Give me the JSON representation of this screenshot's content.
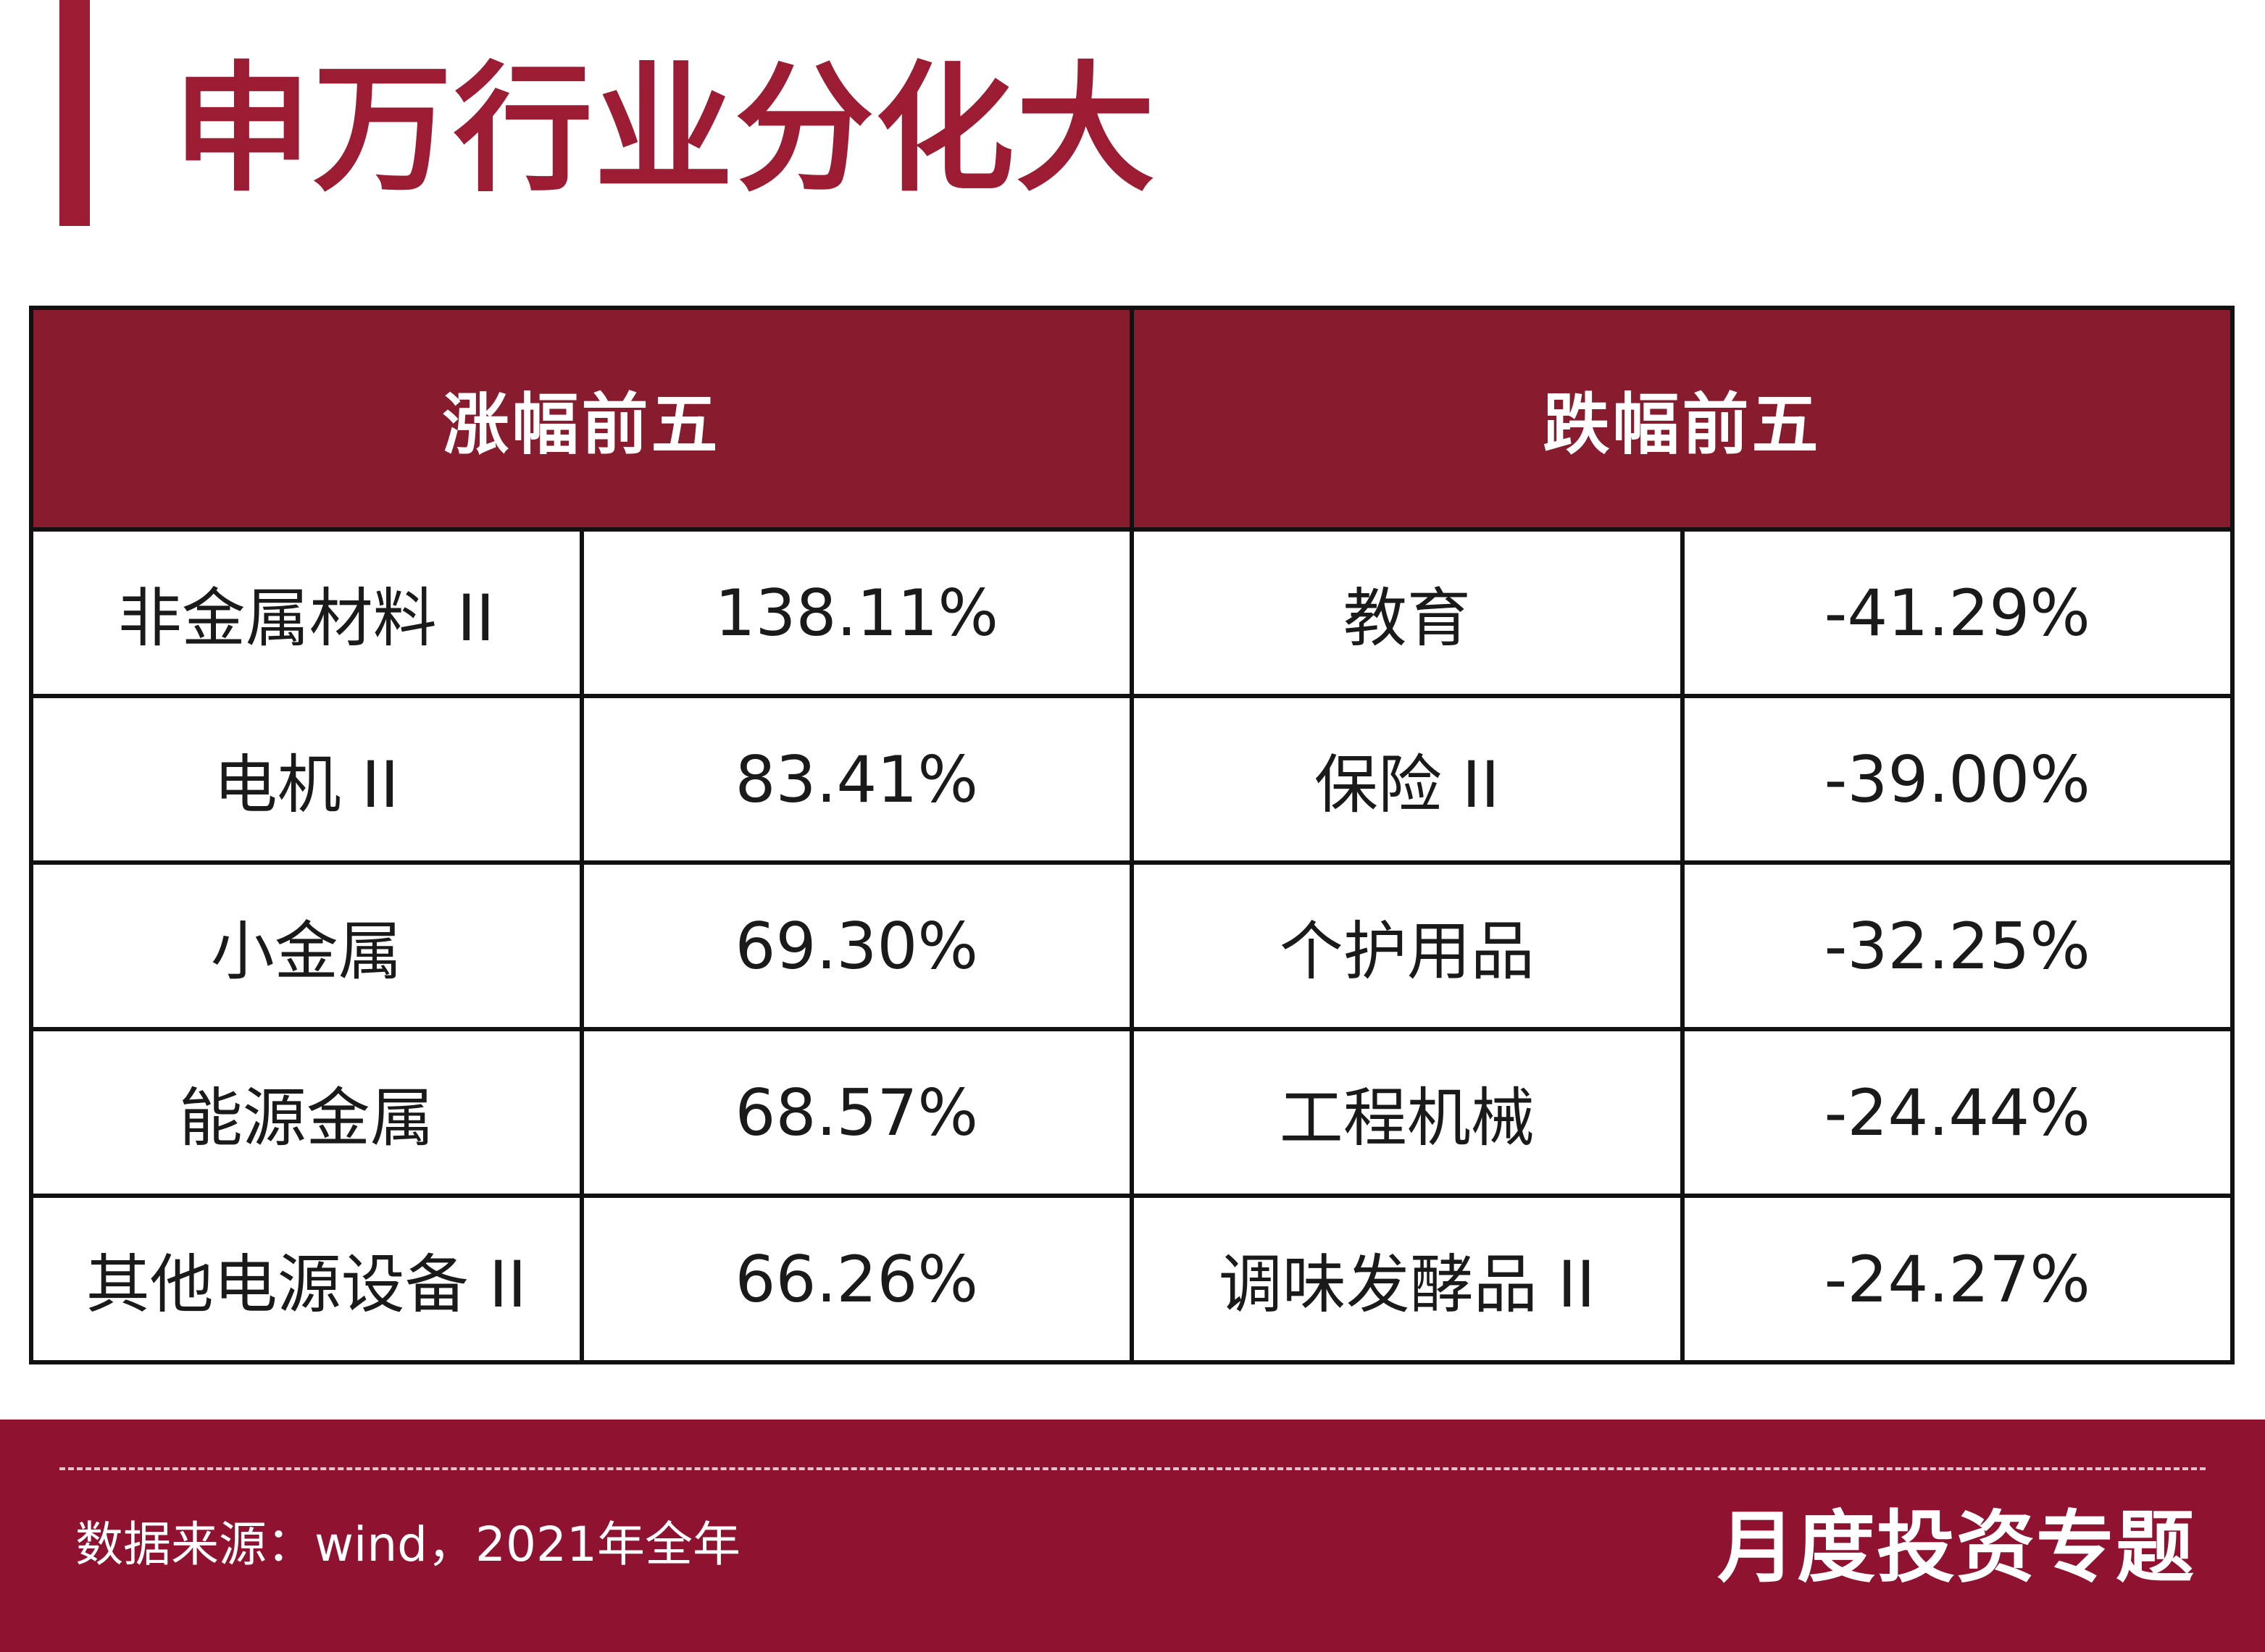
{
  "title": "申万行业分化大",
  "table": {
    "headers": [
      "涨幅前五",
      "跌幅前五"
    ],
    "gainers": [
      {
        "industry": "非金属材料 II",
        "change": "138.11%"
      },
      {
        "industry": "电机 II",
        "change": "83.41%"
      },
      {
        "industry": "小金属",
        "change": "69.30%"
      },
      {
        "industry": "能源金属",
        "change": "68.57%"
      },
      {
        "industry": "其他电源设备 II",
        "change": "66.26%"
      }
    ],
    "losers": [
      {
        "industry": "教育",
        "change": "-41.29%"
      },
      {
        "industry": "保险 II",
        "change": "-39.00%"
      },
      {
        "industry": "个护用品",
        "change": "-32.25%"
      },
      {
        "industry": "工程机械",
        "change": "-24.44%"
      },
      {
        "industry": "调味发酵品 II",
        "change": "-24.27%"
      }
    ]
  },
  "footer": {
    "source": "数据来源：wind，2021年全年",
    "brand": "月度投资专题"
  },
  "colors": {
    "accent": "#9c1c34",
    "header_bg": "#861c2e",
    "footer_bg": "#8f1230"
  }
}
